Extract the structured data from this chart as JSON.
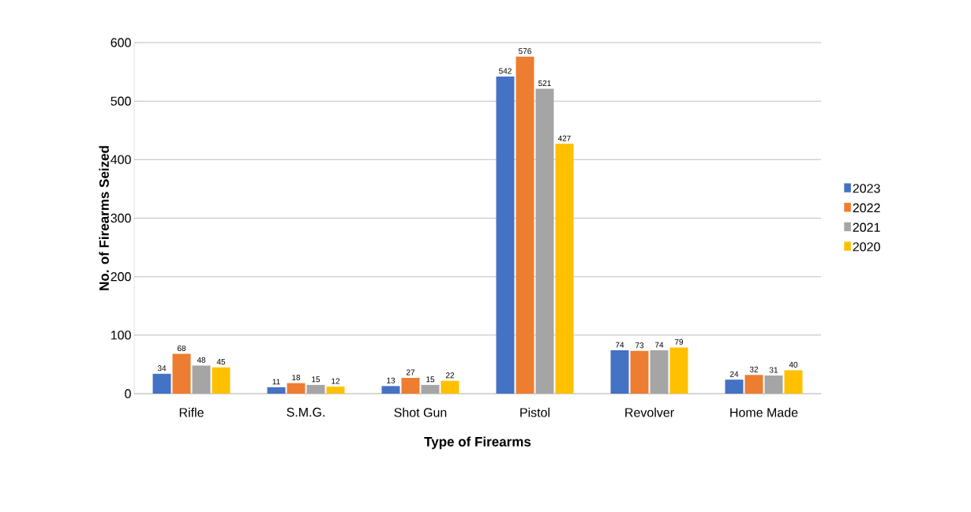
{
  "chart_data": {
    "type": "bar",
    "xlabel": "Type of Firearms",
    "ylabel": "No. of Firearms Seized",
    "categories": [
      "Rifle",
      "S.M.G.",
      "Shot Gun",
      "Pistol",
      "Revolver",
      "Home Made"
    ],
    "series": [
      {
        "name": "2023",
        "color": "#4472c4",
        "values": [
          34,
          11,
          13,
          542,
          74,
          24
        ]
      },
      {
        "name": "2022",
        "color": "#ed7d31",
        "values": [
          68,
          18,
          27,
          576,
          73,
          32
        ]
      },
      {
        "name": "2021",
        "color": "#a5a5a5",
        "values": [
          48,
          15,
          15,
          521,
          74,
          31
        ]
      },
      {
        "name": "2020",
        "color": "#ffc000",
        "values": [
          45,
          12,
          22,
          427,
          79,
          40
        ]
      }
    ],
    "ylim": [
      0,
      600
    ],
    "yticks": [
      0,
      100,
      200,
      300,
      400,
      500,
      600
    ],
    "grid": "y",
    "legend": "right",
    "data_labels": true
  }
}
